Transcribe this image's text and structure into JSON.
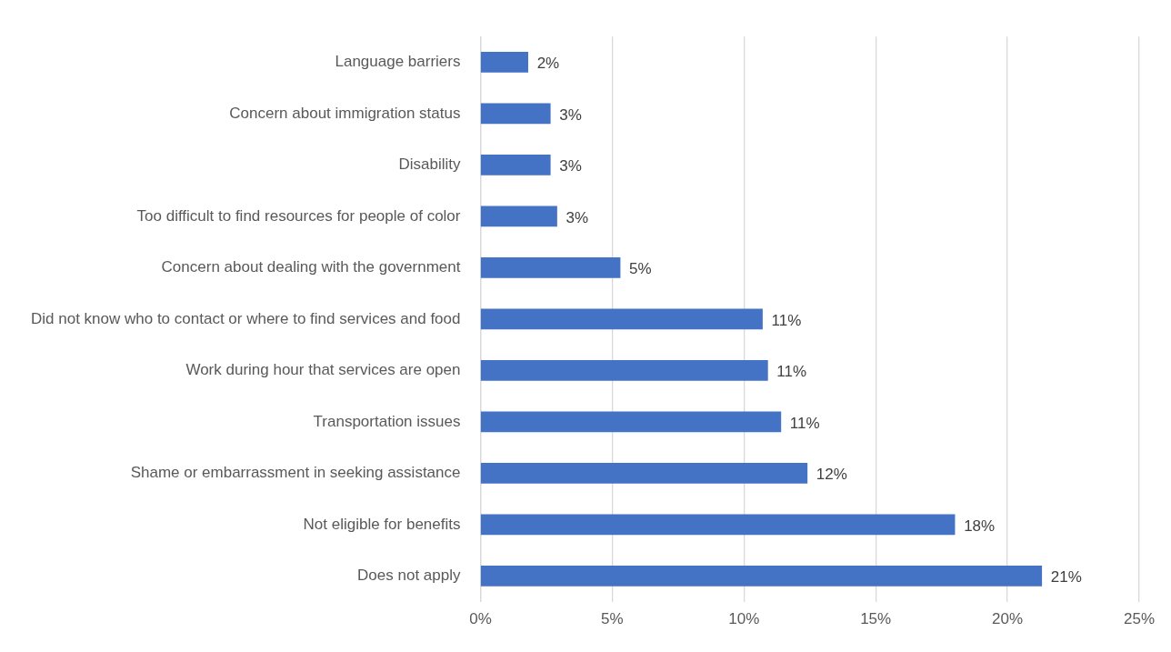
{
  "chart_data": {
    "type": "bar",
    "orientation": "horizontal",
    "categories": [
      "Language barriers",
      "Concern about immigration status",
      "Disability",
      "Too difficult to find resources for people of color",
      "Concern about dealing with the government",
      "Did not know who to contact or where to find services and food",
      "Work during hour that services are open",
      "Transportation issues",
      "Shame or embarrassment in seeking assistance",
      "Not eligible for benefits",
      "Does not apply"
    ],
    "values": [
      1.8,
      2.65,
      2.65,
      2.9,
      5.3,
      10.7,
      10.9,
      11.4,
      12.4,
      18.0,
      21.3
    ],
    "value_labels": [
      "2%",
      "3%",
      "3%",
      "3%",
      "5%",
      "11%",
      "11%",
      "11%",
      "12%",
      "18%",
      "21%"
    ],
    "color": "#4472c4",
    "xlim": [
      0,
      25
    ],
    "xticks": [
      {
        "value": 0,
        "label": "0%"
      },
      {
        "value": 5,
        "label": "5%"
      },
      {
        "value": 10,
        "label": "10%"
      },
      {
        "value": 15,
        "label": "15%"
      },
      {
        "value": 20,
        "label": "20%"
      },
      {
        "value": 25,
        "label": "25%"
      }
    ],
    "grid": "x",
    "legend": false
  }
}
